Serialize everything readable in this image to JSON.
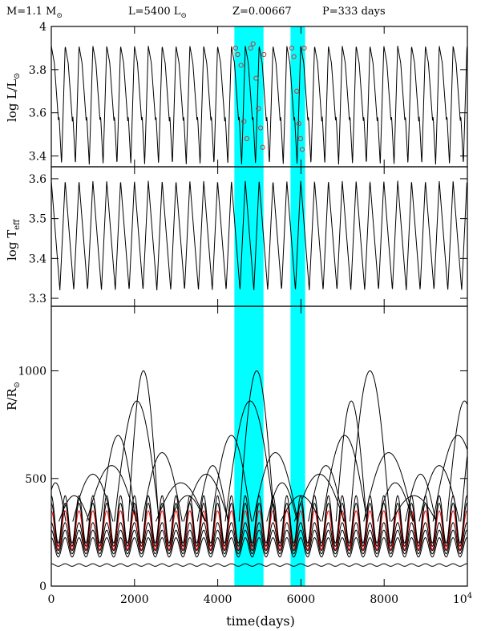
{
  "header": {
    "mass": "M=1.1 M",
    "lum": "L=5400 L",
    "metal": "Z=0.00667",
    "period": "P=333 days"
  },
  "chart_data": {
    "type": "line",
    "period_days": 333,
    "x": {
      "label": "time(days)",
      "lim": [
        0,
        10000
      ],
      "ticks": [
        0,
        2000,
        4000,
        6000,
        8000
      ],
      "tick_labels": [
        "0",
        "2000",
        "4000",
        "6000",
        "8000"
      ],
      "end_label_base": "10",
      "end_label_exp": "4"
    },
    "highlight_bands": [
      [
        4400,
        5100
      ],
      [
        5750,
        6100
      ]
    ],
    "highlight_color": "#00ffff",
    "panels": [
      {
        "name": "luminosity",
        "ylabel_main": "log L/L",
        "ylim": [
          3.35,
          4.0
        ],
        "yticks": [
          3.4,
          3.6,
          3.8,
          4.0
        ],
        "ytick_labels": [
          "3.4",
          "3.6",
          "3.8",
          "4"
        ],
        "curve": {
          "min": 3.36,
          "max": 3.91,
          "secondary_bump": 3.58
        },
        "observations": {
          "color": "#cc3333",
          "points": [
            [
              4430,
              3.9
            ],
            [
              4480,
              3.87
            ],
            [
              4560,
              3.82
            ],
            [
              4630,
              3.56
            ],
            [
              4700,
              3.48
            ],
            [
              4790,
              3.9
            ],
            [
              4850,
              3.92
            ],
            [
              4920,
              3.76
            ],
            [
              4980,
              3.62
            ],
            [
              5030,
              3.53
            ],
            [
              5080,
              3.44
            ],
            [
              5110,
              3.87
            ],
            [
              5780,
              3.9
            ],
            [
              5830,
              3.86
            ],
            [
              5900,
              3.7
            ],
            [
              5950,
              3.55
            ],
            [
              5990,
              3.48
            ],
            [
              6030,
              3.43
            ],
            [
              6080,
              3.9
            ]
          ]
        }
      },
      {
        "name": "teff",
        "ylabel_main": "log T",
        "ylabel_sub": "eff",
        "ylim": [
          3.28,
          3.63
        ],
        "yticks": [
          3.3,
          3.4,
          3.5,
          3.6
        ],
        "ytick_labels": [
          "3.3",
          "3.4",
          "3.5",
          "3.6"
        ],
        "curve": {
          "min": 3.32,
          "max": 3.595
        }
      },
      {
        "name": "radius",
        "ylabel_main": "R/R",
        "ylim": [
          0,
          1300
        ],
        "yticks": [
          0,
          500,
          1000
        ],
        "ytick_labels": [
          "0",
          "500",
          "1000"
        ],
        "pulsating_zones": [
          {
            "mean": 98,
            "amp": 6,
            "color": "#000000"
          },
          {
            "mean": 180,
            "amp": 45,
            "color": "#000000"
          },
          {
            "mean": 205,
            "amp": 55,
            "color": "#000000"
          },
          {
            "mean": 230,
            "amp": 65,
            "color": "#000000"
          },
          {
            "mean": 260,
            "amp": 90,
            "color": "#ff0000"
          },
          {
            "mean": 285,
            "amp": 100,
            "color": "#000000"
          },
          {
            "mean": 310,
            "amp": 110,
            "color": "#000000"
          }
        ]
      }
    ]
  }
}
